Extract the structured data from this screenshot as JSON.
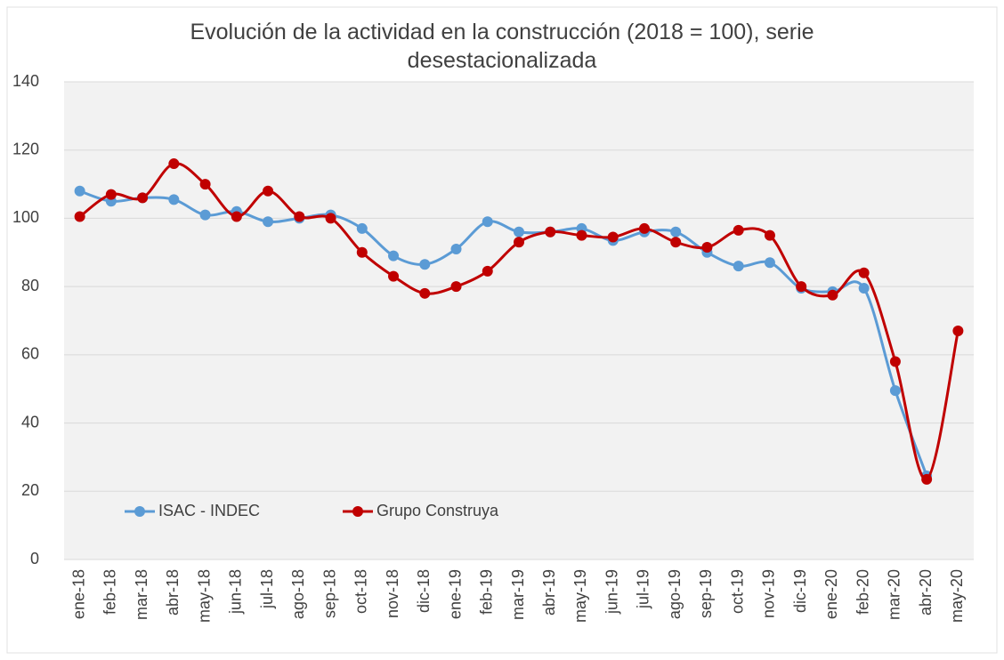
{
  "chart_data": {
    "type": "line",
    "title": "Evolución de la actividad en la construcción (2018 = 100), serie desestacionalizada",
    "categories": [
      "ene-18",
      "feb-18",
      "mar-18",
      "abr-18",
      "may-18",
      "jun-18",
      "jul-18",
      "ago-18",
      "sep-18",
      "oct-18",
      "nov-18",
      "dic-18",
      "ene-19",
      "feb-19",
      "mar-19",
      "abr-19",
      "may-19",
      "jun-19",
      "jul-19",
      "ago-19",
      "sep-19",
      "oct-19",
      "nov-19",
      "dic-19",
      "ene-20",
      "feb-20",
      "mar-20",
      "abr-20",
      "may-20"
    ],
    "series": [
      {
        "name": "ISAC - INDEC",
        "color": "#5b9bd5",
        "values": [
          108,
          105,
          106,
          105.5,
          101,
          102,
          99,
          100,
          101,
          97,
          89,
          86.5,
          91,
          99,
          96,
          96,
          97,
          93.5,
          96,
          96,
          90,
          86,
          87,
          79.5,
          78.5,
          79.5,
          49.5,
          24.5,
          null
        ]
      },
      {
        "name": "Grupo Construya",
        "color": "#c00000",
        "values": [
          100.5,
          107,
          106,
          116,
          110,
          100.5,
          108,
          100.5,
          100,
          90,
          83,
          78,
          80,
          84.5,
          93,
          96,
          95,
          94.5,
          97,
          93,
          91.5,
          96.5,
          95,
          80,
          77.5,
          84,
          58,
          23.5,
          67
        ]
      }
    ],
    "ylim": [
      0,
      140
    ],
    "yticks": [
      0,
      20,
      40,
      60,
      80,
      100,
      120,
      140
    ],
    "grid": true,
    "legend": "lower left"
  }
}
